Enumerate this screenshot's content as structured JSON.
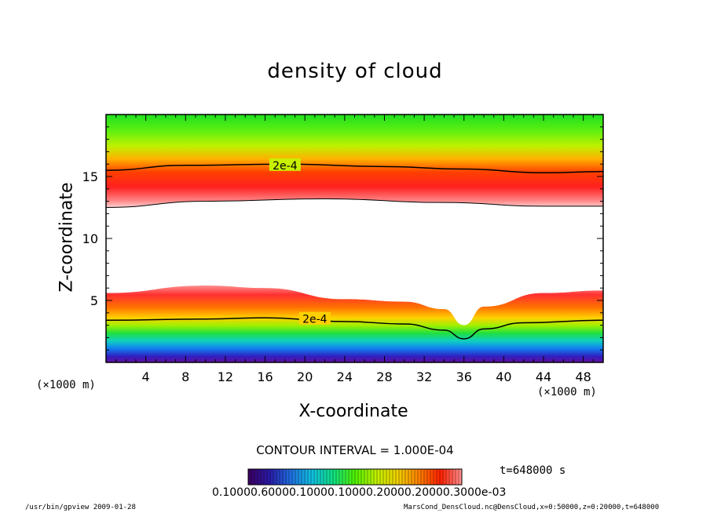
{
  "chart_data": {
    "type": "heatmap",
    "title": "density of cloud",
    "xlabel": "X-coordinate",
    "ylabel": "Z-coordinate",
    "x_unit_left": "(×1000 m)",
    "x_unit_right": "(×1000 m)",
    "xlim": [
      0,
      50
    ],
    "ylim": [
      0,
      20
    ],
    "x_ticks": [
      4,
      8,
      12,
      16,
      20,
      24,
      28,
      32,
      36,
      40,
      44,
      48
    ],
    "y_ticks": [
      5,
      10,
      15
    ],
    "contour_labels": [
      {
        "text": "2e-4",
        "x": 18,
        "z": 15.9
      },
      {
        "text": "2e-4",
        "x": 21,
        "z": 3.5
      }
    ],
    "upper_contour_z": [
      [
        0,
        15.5
      ],
      [
        8,
        15.9
      ],
      [
        18,
        16.0
      ],
      [
        28,
        15.8
      ],
      [
        36,
        15.6
      ],
      [
        44,
        15.3
      ],
      [
        50,
        15.4
      ]
    ],
    "lower_contour_z": [
      [
        0,
        3.4
      ],
      [
        10,
        3.5
      ],
      [
        16,
        3.6
      ],
      [
        24,
        3.3
      ],
      [
        30,
        3.1
      ],
      [
        34,
        2.6
      ],
      [
        36,
        1.9
      ],
      [
        38,
        2.7
      ],
      [
        42,
        3.2
      ],
      [
        50,
        3.4
      ]
    ],
    "upper_base_z": [
      [
        0,
        12.5
      ],
      [
        10,
        13.0
      ],
      [
        22,
        13.2
      ],
      [
        34,
        12.9
      ],
      [
        44,
        12.6
      ],
      [
        50,
        12.6
      ]
    ],
    "lower_top_z": [
      [
        0,
        5.6
      ],
      [
        10,
        6.2
      ],
      [
        16,
        6.0
      ],
      [
        24,
        5.1
      ],
      [
        30,
        4.9
      ],
      [
        34,
        4.3
      ],
      [
        36,
        3.0
      ],
      [
        38,
        4.5
      ],
      [
        44,
        5.6
      ],
      [
        50,
        5.8
      ]
    ],
    "contour_interval_text": "CONTOUR INTERVAL = 1.000E-04",
    "time_text": "t=648000  s",
    "colorbar_labels_text": "0.10000.60000.10000.10000.20000.20000.3000e-03",
    "colorbar_colors": [
      "#3b0060",
      "#2a1aa8",
      "#1f6fe0",
      "#10c0e0",
      "#10e080",
      "#50f000",
      "#c0f000",
      "#f0d000",
      "#ff8000",
      "#ff2000",
      "#ff9090"
    ],
    "grid": false
  },
  "footer": {
    "left": "/usr/bin/gpview  2009-01-28",
    "right": "MarsCond_DensCloud.nc@DensCloud,x=0:50000,z=0:20000,t=648000"
  }
}
